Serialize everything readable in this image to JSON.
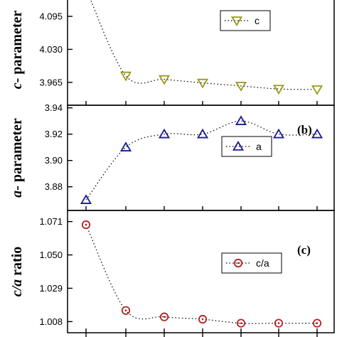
{
  "chart_data": [
    {
      "type": "line",
      "panel_label": "",
      "ylabel_var": "c",
      "ylabel_rest": "- parameter",
      "yticks": [
        3.965,
        4.03,
        4.095
      ],
      "ytick_labels": [
        "3.965",
        "4.030",
        "4.095"
      ],
      "ylim": [
        3.92,
        4.13
      ],
      "series": [
        {
          "name": "c",
          "marker": "triangle-down",
          "color": "#9a9a1a",
          "x": [
            1,
            2,
            3,
            4,
            5,
            6,
            7
          ],
          "y": [
            4.15,
            3.978,
            3.971,
            3.964,
            3.958,
            3.952,
            3.951
          ]
        }
      ],
      "legend_position": "top-right",
      "legend_label": "c"
    },
    {
      "type": "line",
      "panel_label": "(b)",
      "ylabel_var": "a",
      "ylabel_rest": "- parameter",
      "yticks": [
        3.88,
        3.9,
        3.92,
        3.94
      ],
      "ytick_labels": [
        "3.88",
        "3.90",
        "3.92",
        "3.94"
      ],
      "ylim": [
        3.862,
        3.942
      ],
      "series": [
        {
          "name": "a",
          "marker": "triangle-up",
          "color": "#1a1a99",
          "x": [
            1,
            2,
            3,
            4,
            5,
            6,
            7
          ],
          "y": [
            3.87,
            3.91,
            3.92,
            3.92,
            3.93,
            3.92,
            3.92
          ]
        }
      ],
      "legend_position": "center-right",
      "legend_label": "a"
    },
    {
      "type": "line",
      "panel_label": "(c)",
      "ylabel_var": "c/a",
      "ylabel_rest": " ratio",
      "yticks": [
        1.008,
        1.029,
        1.05,
        1.071
      ],
      "ytick_labels": [
        "1.008",
        "1.029",
        "1.050",
        "1.071"
      ],
      "ylim": [
        1.001,
        1.078
      ],
      "series": [
        {
          "name": "c/a",
          "marker": "circle",
          "color": "#b22222",
          "x": [
            1,
            2,
            3,
            4,
            5,
            6,
            7
          ],
          "y": [
            1.069,
            1.015,
            1.011,
            1.0095,
            1.007,
            1.007,
            1.007
          ]
        }
      ],
      "legend_position": "center-right",
      "legend_label": "c/a"
    }
  ]
}
